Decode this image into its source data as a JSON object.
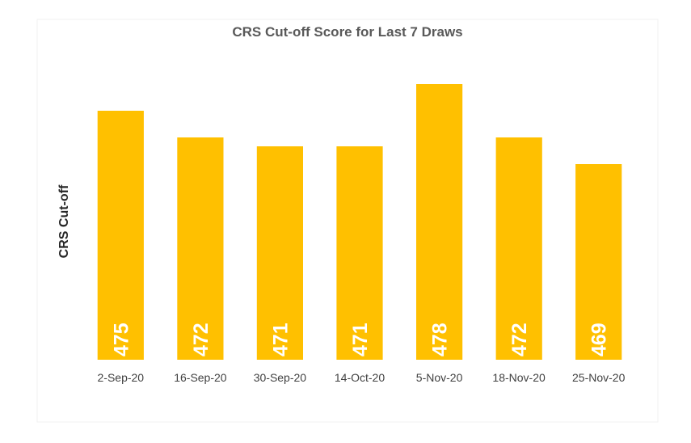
{
  "chart_data": {
    "type": "bar",
    "title": "CRS Cut-off Score for Last 7 Draws",
    "xlabel": "",
    "ylabel": "CRS Cut-off",
    "categories": [
      "2-Sep-20",
      "16-Sep-20",
      "30-Sep-20",
      "14-Oct-20",
      "5-Nov-20",
      "18-Nov-20",
      "25-Nov-20"
    ],
    "series": [
      {
        "values": [
          475,
          472,
          471,
          471,
          478,
          472,
          469
        ]
      }
    ],
    "ylim": [
      447,
      482
    ],
    "grid": false,
    "legend": "none",
    "bar_color": "#FFC000",
    "label_color": "#FFFFFF",
    "data_labels": "inside-base-rotated"
  }
}
